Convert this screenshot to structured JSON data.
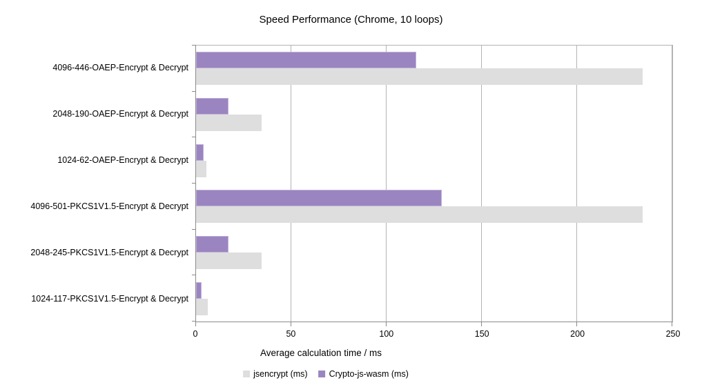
{
  "chart_data": {
    "type": "bar",
    "orientation": "horizontal",
    "title": "Speed Performance (Chrome, 10 loops)",
    "xlabel": "Average calculation time / ms",
    "ylabel": "",
    "categories": [
      "4096-446-OAEP-Encrypt & Decrypt",
      "2048-190-OAEP-Encrypt & Decrypt",
      "1024-62-OAEP-Encrypt & Decrypt",
      "4096-501-PKCS1V1.5-Encrypt & Decrypt",
      "2048-245-PKCS1V1.5-Encrypt & Decrypt",
      "1024-117-PKCS1V1.5-Encrypt & Decrypt"
    ],
    "series": [
      {
        "name": "jsencrypt (ms)",
        "color": "#dedede",
        "values": [
          234.5,
          34.5,
          5.5,
          234.5,
          34.5,
          6
        ]
      },
      {
        "name": "Crypto-js-wasm (ms)",
        "color": "#9a85c0",
        "values": [
          115.5,
          17,
          4,
          129,
          17,
          3
        ]
      }
    ],
    "x_ticks": [
      0,
      50,
      100,
      150,
      200,
      250
    ],
    "xlim": [
      0,
      250
    ],
    "grid": true,
    "legend_position": "bottom"
  },
  "colors": {
    "gridline": "#b3b3b3",
    "axis_line": "#8a8a8a",
    "series1_border": "#bfb0da",
    "background": "#ffffff",
    "text": "#000000"
  }
}
